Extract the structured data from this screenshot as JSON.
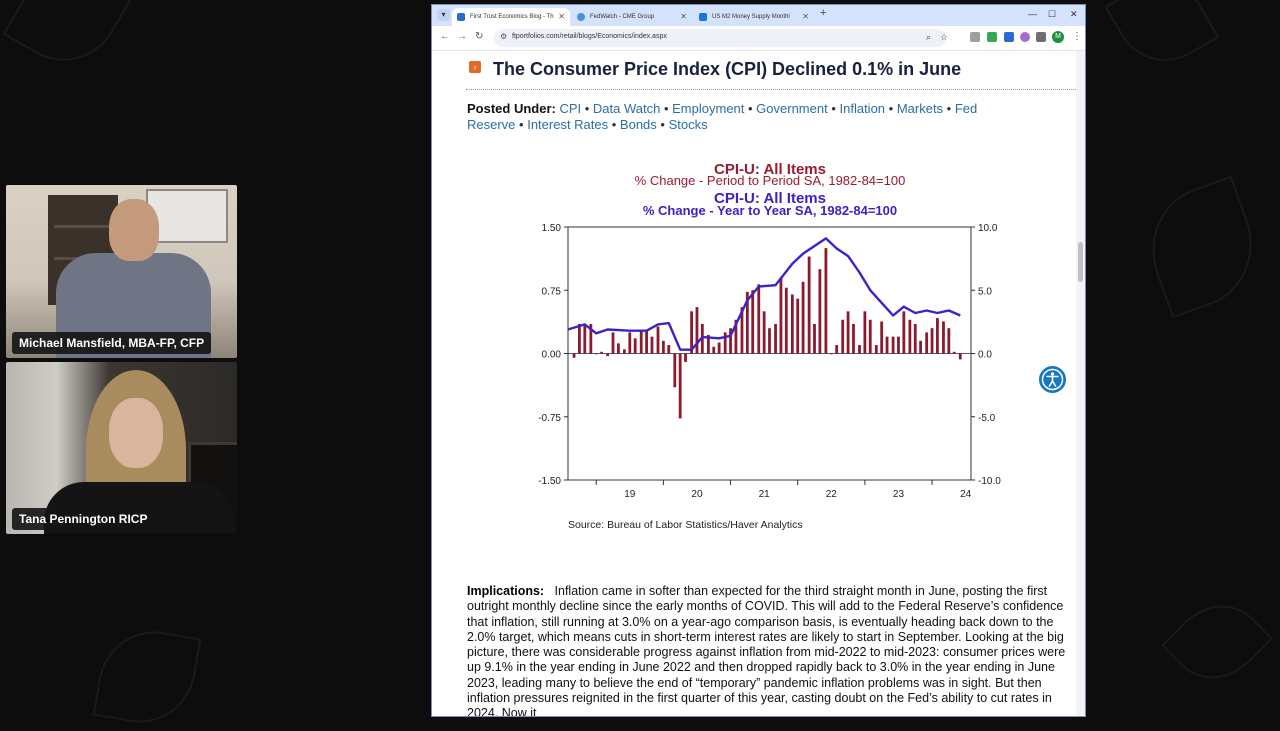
{
  "browser": {
    "tabs": [
      {
        "label": "First Trust Economics Blog - Th",
        "active": true,
        "favicon_color": "#2a6ad0"
      },
      {
        "label": "FedWatch - CME Group",
        "active": false,
        "favicon_color": "#4a90d9"
      },
      {
        "label": "US M2 Money Supply Monthl",
        "active": false,
        "favicon_color": "#1a73e8"
      }
    ],
    "url": "ftportfolios.com/retail/blogs/Economics/index.aspx",
    "profile_initial": "M"
  },
  "article": {
    "title": "The Consumer Price Index (CPI) Declined 0.1% in June",
    "posted_under_label": "Posted Under:",
    "categories": [
      "CPI",
      "Data Watch",
      "Employment",
      "Government",
      "Inflation",
      "Markets",
      "Fed Reserve",
      "Interest Rates",
      "Bonds",
      "Stocks"
    ],
    "implications_label": "Implications:",
    "implications_text": "Inflation came in softer than expected for the third straight month in June, posting the first outright monthly decline since the early months of COVID.  This will add to the Federal Reserve’s confidence that inflation, still running at 3.0% on a year-ago comparison basis, is eventually heading back down to the 2.0% target, which means cuts in short-term interest rates are likely to start in September.  Looking at the big picture, there was considerable progress against inflation from mid-2022 to mid-2023: consumer prices were up 9.1% in the year ending in June 2022 and then dropped rapidly back to 3.0% in the year ending in June 2023, leading many to believe the end of “temporary” pandemic inflation problems was in sight.  But then inflation pressures reignited in the first quarter of this year, casting doubt on the Fed’s ability to cut rates in 2024.  Now it"
  },
  "chart_data": {
    "type": "bar+line",
    "title_lines": [
      {
        "text": "CPI-U: All Items",
        "color": "#9b1b30"
      },
      {
        "text": "% Change - Period to Period    SA, 1982-84=100",
        "color": "#9b1b30"
      },
      {
        "text": "CPI-U: All Items",
        "color": "#3a22c8"
      },
      {
        "text": "% Change - Year to Year    SA, 1982-84=100",
        "color": "#3a22c8"
      }
    ],
    "source": "Source:  Bureau of Labor Statistics/Haver Analytics",
    "x_ticks": [
      "19",
      "20",
      "21",
      "22",
      "23",
      "24"
    ],
    "left_axis": {
      "ticks": [
        "1.50",
        "0.75",
        "0.00",
        "-0.75",
        "-1.50"
      ],
      "range": [
        -1.5,
        1.5
      ],
      "color": "#9b1b30"
    },
    "right_axis": {
      "ticks": [
        "10.0",
        "5.0",
        "0.0",
        "-5.0",
        "-10.0"
      ],
      "range": [
        -10,
        10
      ],
      "color": "#3a22c8"
    },
    "x_range": [
      2018.58,
      2024.58
    ],
    "series": [
      {
        "name": "% Change - Period to Period",
        "kind": "bar",
        "color": "#8b1a2e",
        "points": [
          [
            2018.67,
            -0.05
          ],
          [
            2018.75,
            0.35
          ],
          [
            2018.83,
            0.35
          ],
          [
            2018.92,
            0.35
          ],
          [
            2019.0,
            0.0
          ],
          [
            2019.08,
            0.02
          ],
          [
            2019.17,
            -0.03
          ],
          [
            2019.25,
            0.25
          ],
          [
            2019.33,
            0.12
          ],
          [
            2019.42,
            0.05
          ],
          [
            2019.5,
            0.25
          ],
          [
            2019.58,
            0.18
          ],
          [
            2019.67,
            0.28
          ],
          [
            2019.75,
            0.28
          ],
          [
            2019.83,
            0.2
          ],
          [
            2019.92,
            0.32
          ],
          [
            2020.0,
            0.15
          ],
          [
            2020.08,
            0.1
          ],
          [
            2020.17,
            -0.4
          ],
          [
            2020.25,
            -0.77
          ],
          [
            2020.33,
            -0.1
          ],
          [
            2020.42,
            0.5
          ],
          [
            2020.5,
            0.55
          ],
          [
            2020.58,
            0.35
          ],
          [
            2020.67,
            0.22
          ],
          [
            2020.75,
            0.08
          ],
          [
            2020.83,
            0.13
          ],
          [
            2020.92,
            0.25
          ],
          [
            2021.0,
            0.3
          ],
          [
            2021.08,
            0.4
          ],
          [
            2021.17,
            0.55
          ],
          [
            2021.25,
            0.73
          ],
          [
            2021.33,
            0.75
          ],
          [
            2021.42,
            0.82
          ],
          [
            2021.5,
            0.5
          ],
          [
            2021.58,
            0.3
          ],
          [
            2021.67,
            0.35
          ],
          [
            2021.75,
            0.9
          ],
          [
            2021.83,
            0.78
          ],
          [
            2021.92,
            0.7
          ],
          [
            2022.0,
            0.65
          ],
          [
            2022.08,
            0.85
          ],
          [
            2022.17,
            1.15
          ],
          [
            2022.25,
            0.35
          ],
          [
            2022.33,
            1.0
          ],
          [
            2022.42,
            1.25
          ],
          [
            2022.5,
            0.0
          ],
          [
            2022.58,
            0.1
          ],
          [
            2022.67,
            0.4
          ],
          [
            2022.75,
            0.5
          ],
          [
            2022.83,
            0.35
          ],
          [
            2022.92,
            0.1
          ],
          [
            2023.0,
            0.5
          ],
          [
            2023.08,
            0.4
          ],
          [
            2023.17,
            0.1
          ],
          [
            2023.25,
            0.38
          ],
          [
            2023.33,
            0.2
          ],
          [
            2023.42,
            0.2
          ],
          [
            2023.5,
            0.2
          ],
          [
            2023.58,
            0.5
          ],
          [
            2023.67,
            0.4
          ],
          [
            2023.75,
            0.35
          ],
          [
            2023.83,
            0.15
          ],
          [
            2023.92,
            0.25
          ],
          [
            2024.0,
            0.3
          ],
          [
            2024.08,
            0.42
          ],
          [
            2024.17,
            0.38
          ],
          [
            2024.25,
            0.3
          ],
          [
            2024.33,
            0.02
          ],
          [
            2024.42,
            -0.07
          ]
        ]
      },
      {
        "name": "% Change - Year to Year",
        "kind": "line",
        "color": "#3d22c9",
        "points": [
          [
            2018.58,
            1.9
          ],
          [
            2018.83,
            2.3
          ],
          [
            2019.0,
            1.6
          ],
          [
            2019.17,
            1.9
          ],
          [
            2019.5,
            1.8
          ],
          [
            2019.75,
            1.8
          ],
          [
            2019.92,
            2.3
          ],
          [
            2020.08,
            2.4
          ],
          [
            2020.25,
            0.3
          ],
          [
            2020.42,
            0.3
          ],
          [
            2020.58,
            1.3
          ],
          [
            2020.83,
            1.2
          ],
          [
            2021.0,
            1.4
          ],
          [
            2021.25,
            4.2
          ],
          [
            2021.42,
            5.3
          ],
          [
            2021.67,
            5.4
          ],
          [
            2021.92,
            7.1
          ],
          [
            2022.08,
            7.9
          ],
          [
            2022.25,
            8.5
          ],
          [
            2022.42,
            9.1
          ],
          [
            2022.58,
            8.3
          ],
          [
            2022.75,
            7.7
          ],
          [
            2022.92,
            6.4
          ],
          [
            2023.08,
            5.0
          ],
          [
            2023.25,
            4.0
          ],
          [
            2023.42,
            3.0
          ],
          [
            2023.58,
            3.7
          ],
          [
            2023.75,
            3.2
          ],
          [
            2023.92,
            3.4
          ],
          [
            2024.08,
            3.2
          ],
          [
            2024.25,
            3.4
          ],
          [
            2024.42,
            3.0
          ]
        ]
      }
    ]
  },
  "participants": [
    {
      "name": "Michael Mansfield, MBA-FP, CFP"
    },
    {
      "name": "Tana Pennington RICP"
    }
  ]
}
